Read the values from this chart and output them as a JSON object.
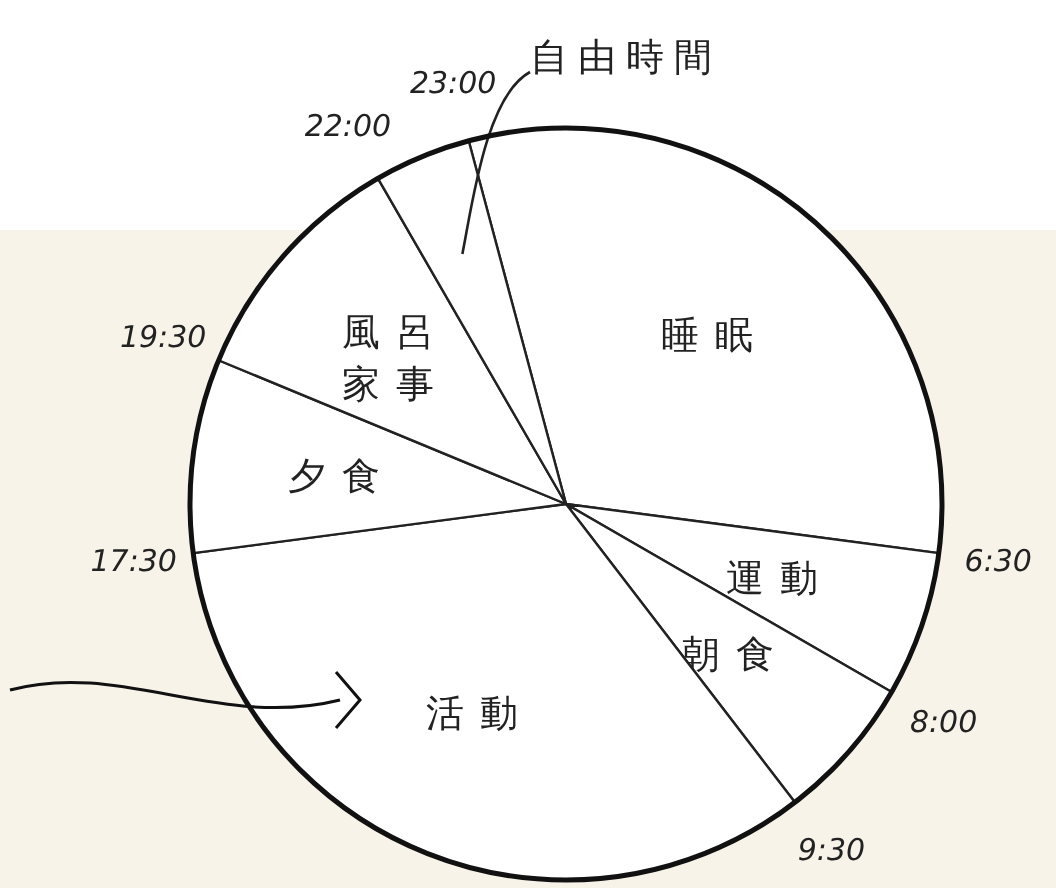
{
  "chart_data": {
    "type": "pie",
    "categories": [
      "睡眠",
      "運動",
      "朝食",
      "活動",
      "夕食",
      "風呂家事",
      "自由時間"
    ],
    "values": [
      31.25,
      6.25,
      6.25,
      33.33,
      8.33,
      10.42,
      4.17
    ],
    "colors": [
      "#ffffff",
      "#ffffff",
      "#ffffff",
      "#ffffff",
      "#ffffff",
      "#ffffff",
      "#ffffff"
    ],
    "annotations": [
      "6:30",
      "8:00",
      "9:30",
      "17:30",
      "19:30",
      "22:00",
      "23:00"
    ]
  }
}
